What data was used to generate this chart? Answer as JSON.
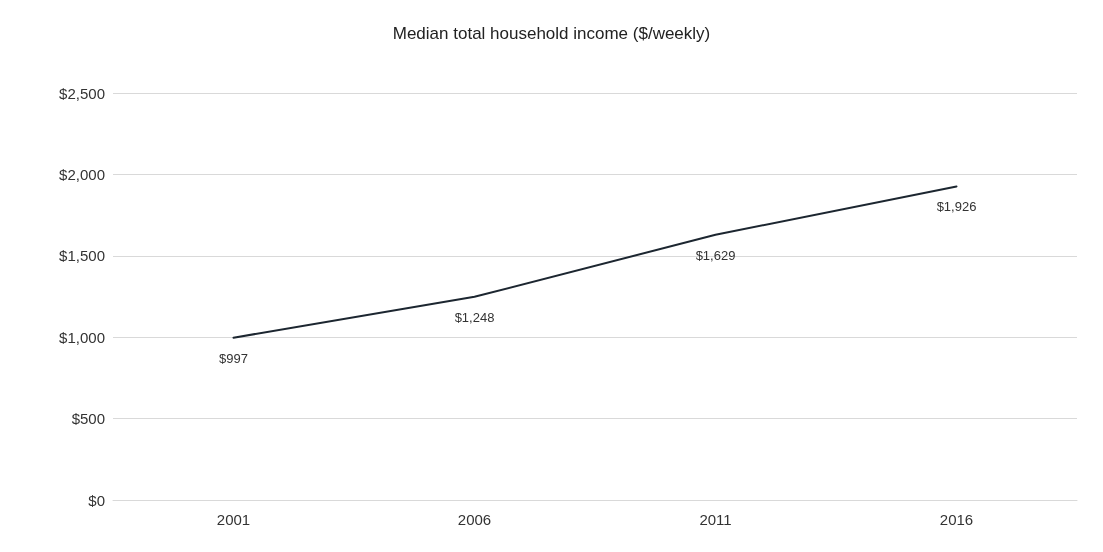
{
  "chart_data": {
    "type": "line",
    "title": "Median total household income ($/weekly)",
    "categories": [
      "2001",
      "2006",
      "2011",
      "2016"
    ],
    "series": [
      {
        "color": "#1c2630",
        "values": [
          997,
          1248,
          1629,
          1926
        ],
        "value_labels": [
          "$997",
          "$1,248",
          "$1,629",
          "$1,926"
        ]
      }
    ],
    "ylim": [
      0,
      2500
    ],
    "yticks": [
      {
        "value": 0,
        "label": "$0"
      },
      {
        "value": 500,
        "label": "$500"
      },
      {
        "value": 1000,
        "label": "$1,000"
      },
      {
        "value": 1500,
        "label": "$1,500"
      },
      {
        "value": 2000,
        "label": "$2,000"
      },
      {
        "value": 2500,
        "label": "$2,500"
      }
    ],
    "grid": "y",
    "marker": "none",
    "line_style": "solid"
  }
}
